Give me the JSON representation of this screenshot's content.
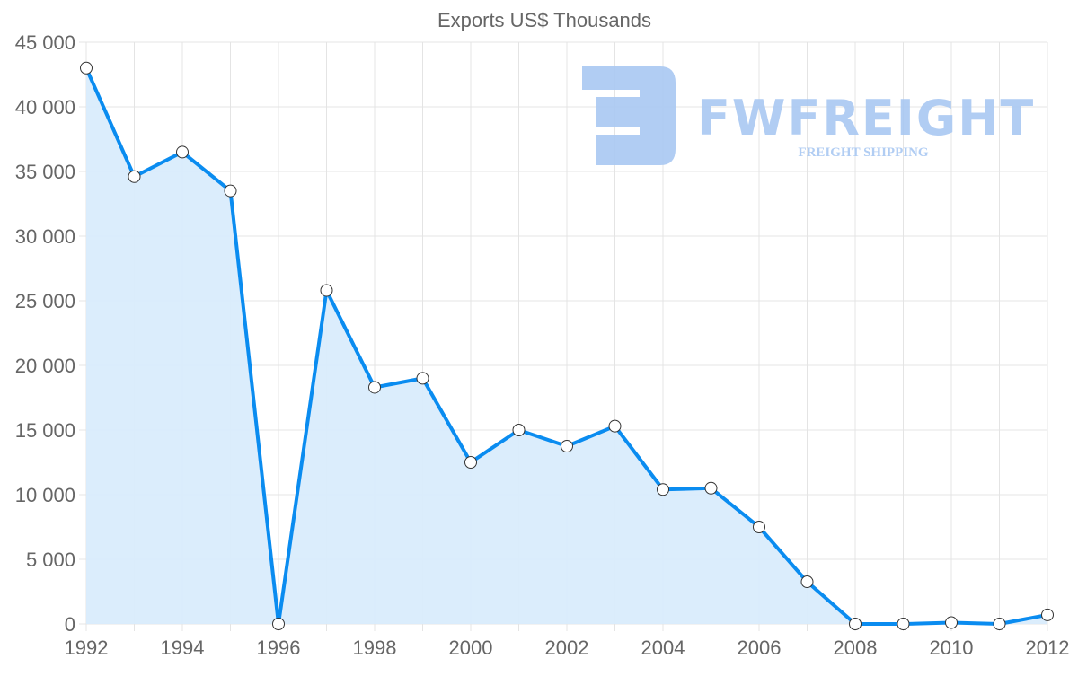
{
  "chart_data": {
    "type": "area",
    "title": "Exports US$ Thousands",
    "xlabel": "",
    "ylabel": "",
    "x": [
      1992,
      1993,
      1994,
      1995,
      1996,
      1997,
      1998,
      1999,
      2000,
      2001,
      2002,
      2003,
      2004,
      2005,
      2006,
      2007,
      2008,
      2009,
      2010,
      2011,
      2012
    ],
    "series": [
      {
        "name": "Exports US$ Thousands",
        "values": [
          43000,
          34600,
          36500,
          33500,
          0,
          25800,
          18300,
          19000,
          12500,
          15000,
          13750,
          15300,
          10400,
          10500,
          7500,
          3260,
          0,
          0,
          100,
          0,
          700
        ]
      }
    ],
    "xlim": [
      1992,
      2012
    ],
    "ylim": [
      0,
      45000
    ],
    "x_ticks": [
      "1992",
      "1994",
      "1996",
      "1998",
      "2000",
      "2002",
      "2004",
      "2006",
      "2008",
      "2010",
      "2012"
    ],
    "y_ticks": [
      "0",
      "5 000",
      "10 000",
      "15 000",
      "20 000",
      "25 000",
      "30 000",
      "35 000",
      "40 000",
      "45 000"
    ],
    "grid": true,
    "legend": "none",
    "colors": {
      "line": "#0a8cf0",
      "fill": "#d9ecfc",
      "grid": "#e4e4e4",
      "watermark": "#a9c8f2"
    }
  },
  "watermark": {
    "brand": "FWFREIGHT",
    "tagline": "FREIGHT SHIPPING"
  }
}
